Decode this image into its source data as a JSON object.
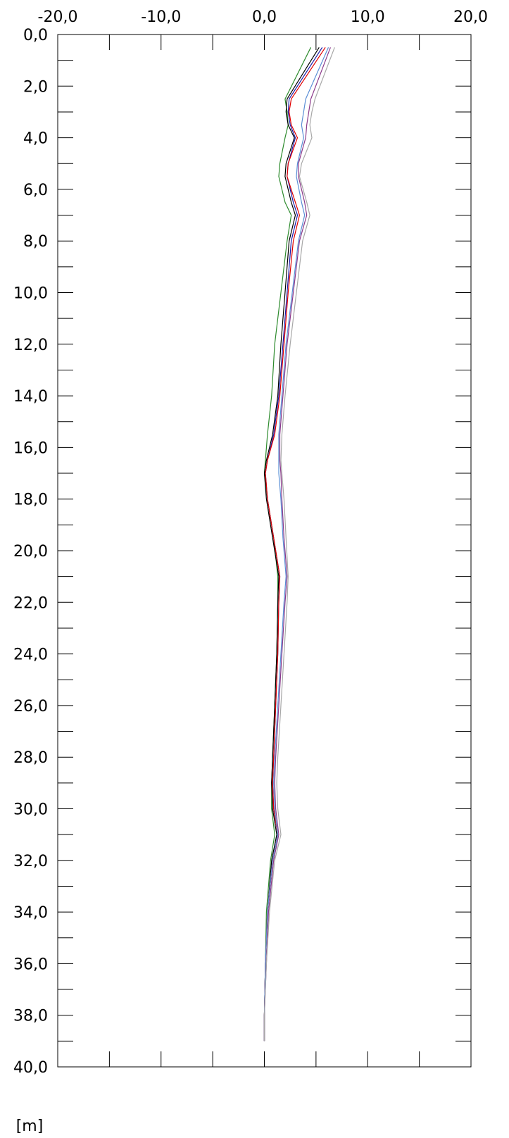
{
  "chart_data": {
    "type": "line",
    "orientation": "vertical-depth-profile",
    "x_ticks": [
      "-20,0",
      "-10,0",
      "0,0",
      "10,0",
      "20,0"
    ],
    "y_ticks": [
      "0,0",
      "2,0",
      "4,0",
      "6,0",
      "8,0",
      "10,0",
      "12,0",
      "14,0",
      "16,0",
      "18,0",
      "20,0",
      "22,0",
      "24,0",
      "26,0",
      "28,0",
      "30,0",
      "32,0",
      "34,0",
      "36,0",
      "38,0",
      "40,0"
    ],
    "y_unit": "[m]",
    "xlim": [
      -20,
      20
    ],
    "ylim": [
      0,
      40
    ],
    "y_inverted": true,
    "grid": false,
    "depth": [
      0.5,
      2.5,
      3.0,
      3.5,
      4.0,
      5.0,
      5.5,
      6.5,
      7.0,
      8.0,
      10.0,
      12.0,
      14.0,
      15.5,
      16.5,
      17.0,
      18.0,
      19.5,
      21.0,
      22.0,
      24.0,
      26.0,
      28.0,
      29.0,
      30.0,
      31.0,
      32.0,
      34.0,
      36.0,
      38.0,
      39.0
    ],
    "series": [
      {
        "color": "#2e8b2e",
        "values": [
          4.5,
          2.0,
          2.2,
          2.3,
          2.0,
          1.5,
          1.4,
          2.0,
          2.6,
          2.2,
          1.6,
          1.0,
          0.7,
          0.3,
          0.1,
          0.0,
          0.3,
          0.9,
          1.3,
          1.3,
          1.2,
          1.0,
          0.8,
          0.7,
          0.7,
          1.0,
          0.6,
          0.2,
          0.1,
          0.0,
          0.0
        ]
      },
      {
        "color": "#000000",
        "values": [
          5.3,
          2.2,
          2.1,
          2.3,
          2.9,
          2.1,
          2.0,
          2.6,
          3.0,
          2.4,
          2.0,
          1.6,
          1.3,
          0.8,
          0.2,
          0.0,
          0.2,
          0.8,
          1.4,
          1.3,
          1.2,
          1.0,
          0.8,
          0.7,
          0.8,
          1.2,
          0.7,
          0.3,
          0.1,
          0.0,
          0.0
        ]
      },
      {
        "color": "#1a1aaa",
        "values": [
          5.6,
          2.4,
          2.3,
          2.5,
          3.0,
          2.3,
          2.2,
          2.8,
          3.2,
          2.6,
          2.2,
          1.8,
          1.4,
          0.9,
          0.3,
          0.1,
          0.3,
          0.9,
          1.5,
          1.4,
          1.3,
          1.1,
          0.9,
          0.8,
          0.9,
          1.3,
          0.8,
          0.3,
          0.1,
          0.0,
          0.0
        ]
      },
      {
        "color": "#e00000",
        "values": [
          5.9,
          2.6,
          2.4,
          2.6,
          3.2,
          2.3,
          2.2,
          3.0,
          3.4,
          2.8,
          2.3,
          1.9,
          1.5,
          1.0,
          0.3,
          0.1,
          0.3,
          0.9,
          1.5,
          1.4,
          1.3,
          1.1,
          0.9,
          0.8,
          0.9,
          1.3,
          0.8,
          0.3,
          0.1,
          0.0,
          0.0
        ]
      },
      {
        "color": "#8b3a8b",
        "values": [
          6.4,
          4.5,
          4.3,
          4.1,
          4.0,
          3.3,
          3.3,
          3.9,
          4.1,
          3.4,
          2.8,
          2.2,
          1.8,
          1.5,
          1.5,
          1.6,
          1.7,
          1.9,
          2.2,
          2.0,
          1.7,
          1.4,
          1.1,
          1.0,
          1.1,
          1.4,
          0.9,
          0.4,
          0.2,
          0.0,
          0.0
        ]
      },
      {
        "color": "#5b8fd6",
        "values": [
          6.2,
          4.0,
          3.8,
          3.6,
          3.8,
          3.2,
          3.1,
          3.6,
          3.9,
          3.3,
          2.7,
          2.1,
          1.7,
          1.4,
          1.4,
          1.4,
          1.6,
          1.8,
          2.1,
          1.9,
          1.6,
          1.3,
          1.0,
          0.9,
          1.0,
          1.3,
          0.8,
          0.3,
          0.1,
          0.0,
          0.0
        ]
      },
      {
        "color": "#a8a8a8",
        "values": [
          6.8,
          4.9,
          4.6,
          4.4,
          4.6,
          3.6,
          3.4,
          4.1,
          4.4,
          3.7,
          3.1,
          2.5,
          2.0,
          1.7,
          1.6,
          1.7,
          1.9,
          2.1,
          2.3,
          2.2,
          1.9,
          1.6,
          1.3,
          1.2,
          1.3,
          1.6,
          1.0,
          0.5,
          0.2,
          0.0,
          0.0
        ]
      }
    ]
  }
}
